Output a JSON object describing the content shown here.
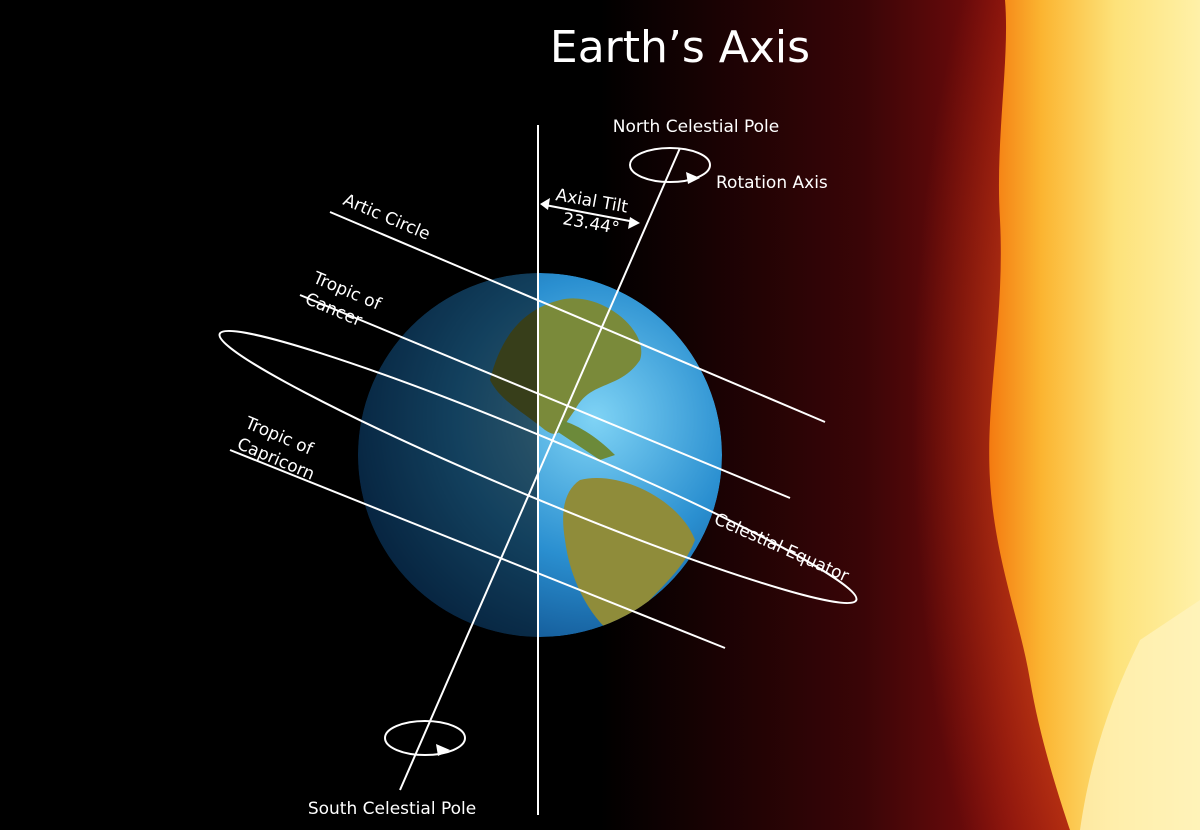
{
  "title": "Earth’s Axis",
  "labels": {
    "north_pole": "North Celestial Pole",
    "rotation_axis": "Rotation Axis",
    "axial_tilt": [
      "Axial Tilt",
      "23.44°"
    ],
    "arctic_circle": "Artic Circle",
    "tropic_cancer": [
      "Tropic of",
      "Cancer"
    ],
    "tropic_capricorn": [
      "Tropic of",
      "Capricorn"
    ],
    "celestial_equator": "Celestial Equator",
    "south_pole": "South Celestial Pole"
  }
}
